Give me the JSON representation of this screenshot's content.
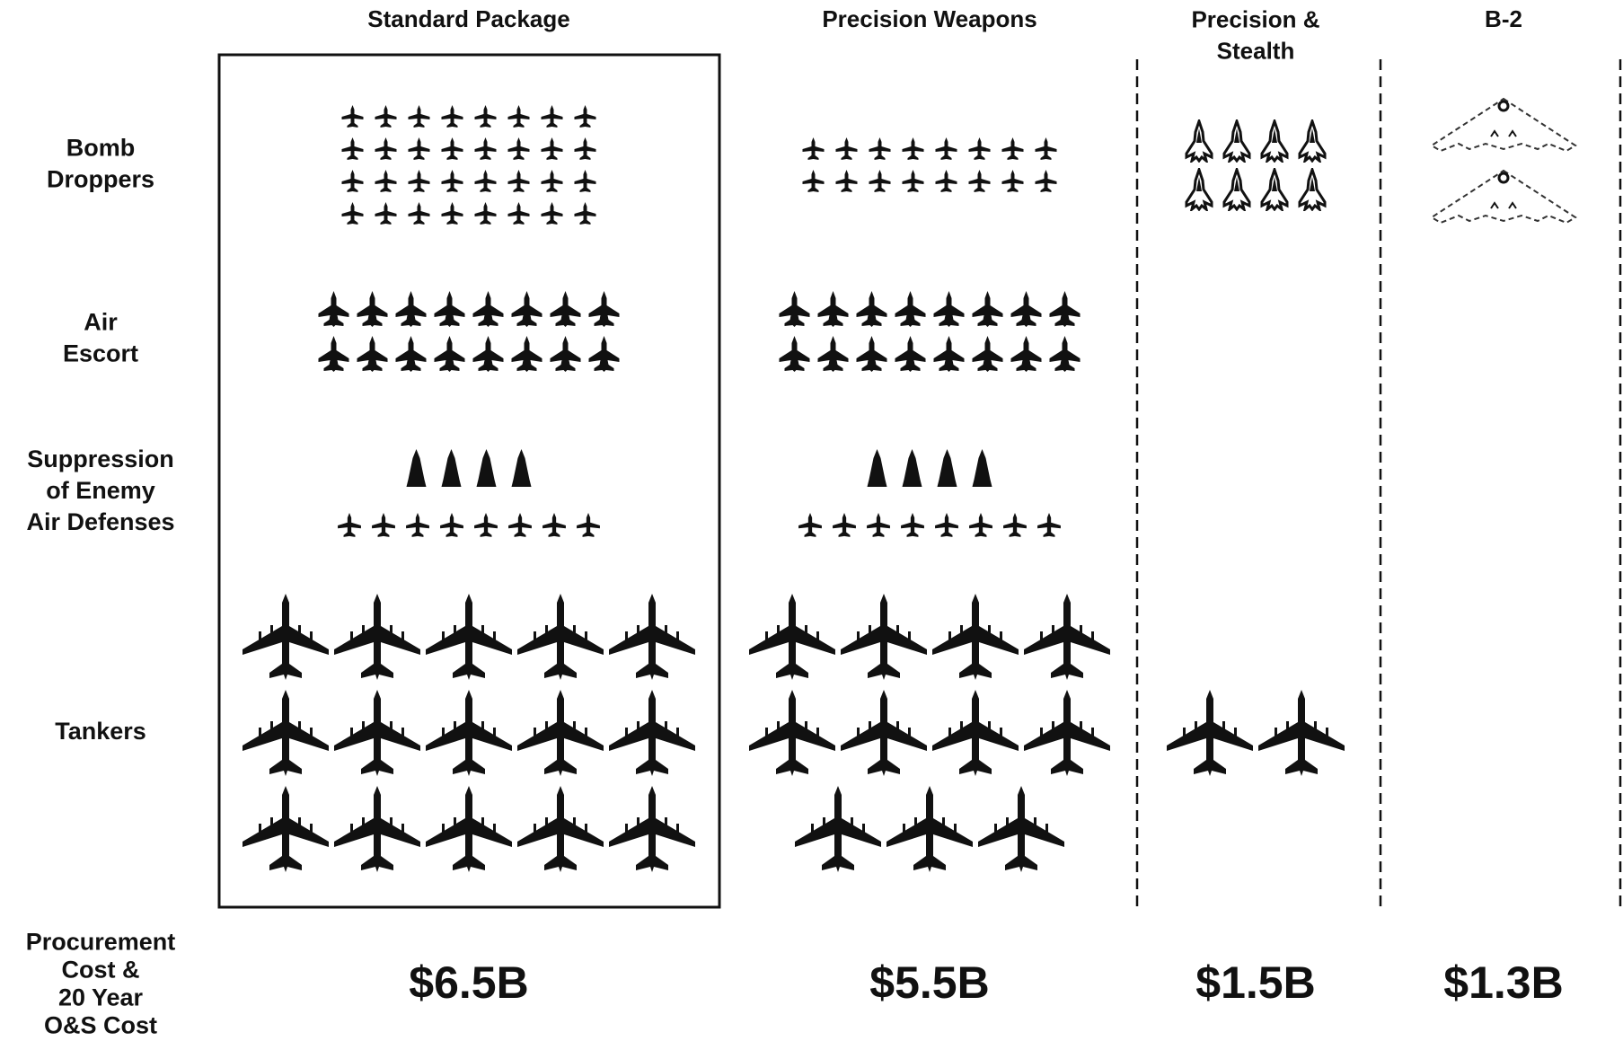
{
  "row_labels": [
    [
      "Bomb",
      "Droppers"
    ],
    [
      "Air",
      "Escort"
    ],
    [
      "Suppression",
      "of Enemy",
      "Air Defenses"
    ],
    [
      "Tankers"
    ]
  ],
  "cost_label": [
    "Procurement",
    "Cost &",
    "20 Year",
    "O&S Cost"
  ],
  "columns": [
    {
      "title": [
        "Standard Package"
      ],
      "bomb_droppers": 32,
      "air_escort": 16,
      "sead_jammers": 4,
      "sead_fighters": 8,
      "tankers": 15,
      "cost": "$6.5B"
    },
    {
      "title": [
        "Precision Weapons"
      ],
      "bomb_droppers": 16,
      "air_escort": 16,
      "sead_jammers": 4,
      "sead_fighters": 8,
      "tankers": 11,
      "cost": "$5.5B"
    },
    {
      "title": [
        "Precision &",
        "Stealth"
      ],
      "bomb_droppers": 8,
      "air_escort": 0,
      "sead_jammers": 0,
      "sead_fighters": 0,
      "tankers": 2,
      "cost": "$1.5B"
    },
    {
      "title": [
        "B-2"
      ],
      "bomb_droppers": 2,
      "air_escort": 0,
      "sead_jammers": 0,
      "sead_fighters": 0,
      "tankers": 0,
      "cost": "$1.3B"
    }
  ]
}
